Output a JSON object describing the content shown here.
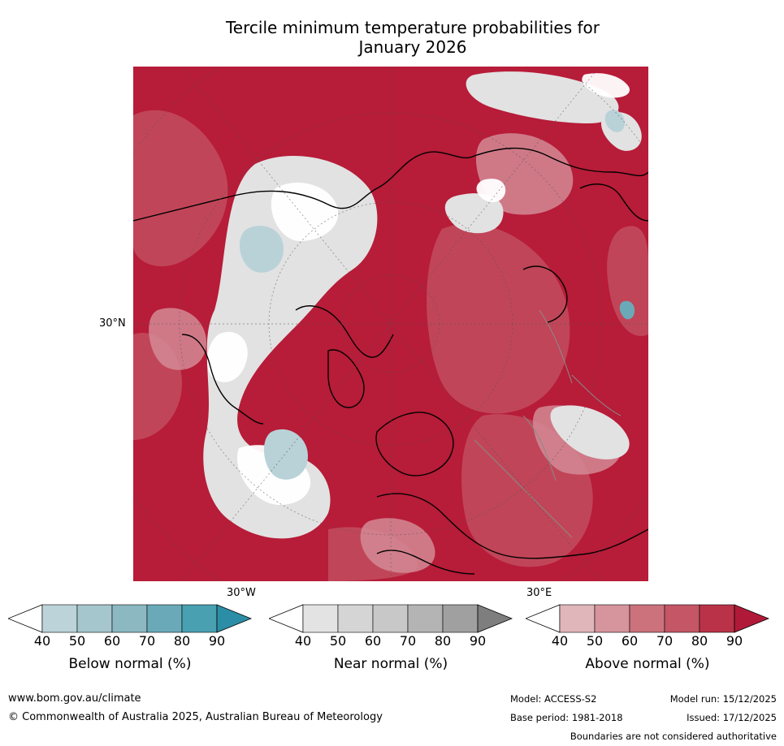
{
  "title": {
    "line1": "Tercile minimum temperature probabilities for",
    "line2": "January 2026"
  },
  "map": {
    "lat_label": "30°N",
    "lon_labels": {
      "west": "30°W",
      "east": "30°E"
    },
    "colors": {
      "above_dark": "#b71c38",
      "above_mid": "#c24a5c",
      "above_light": "#d38a95",
      "near": "#e2e2e2",
      "below": "#b9d2d8",
      "white": "#ffffff"
    }
  },
  "colorbars": [
    {
      "name": "Below normal (%)",
      "ticks": [
        "40",
        "50",
        "60",
        "70",
        "80",
        "90"
      ],
      "colors": [
        "#ffffff",
        "#bcd3d9",
        "#a6c6cd",
        "#8cb8c2",
        "#6aaab8",
        "#48a0b1",
        "#2b8ea6"
      ]
    },
    {
      "name": "Near normal (%)",
      "ticks": [
        "40",
        "50",
        "60",
        "70",
        "80",
        "90"
      ],
      "colors": [
        "#ffffff",
        "#e3e3e3",
        "#d5d5d5",
        "#c8c8c8",
        "#b4b4b4",
        "#a0a0a0",
        "#7e7e7e"
      ]
    },
    {
      "name": "Above normal (%)",
      "ticks": [
        "40",
        "50",
        "60",
        "70",
        "80",
        "90"
      ],
      "colors": [
        "#ffffff",
        "#e0b6bb",
        "#d6949c",
        "#cc727d",
        "#c45666",
        "#ba3248",
        "#b01a38"
      ]
    }
  ],
  "footer": {
    "website": "www.bom.gov.au/climate",
    "copyright": "© Commonwealth of Australia 2025, Australian Bureau of Meteorology",
    "model": "Model: ACCESS-S2",
    "base_period": "Base period: 1981-2018",
    "model_run": "Model run: 15/12/2025",
    "issued": "Issued: 17/12/2025",
    "disclaimer": "Boundaries are not considered authoritative"
  }
}
